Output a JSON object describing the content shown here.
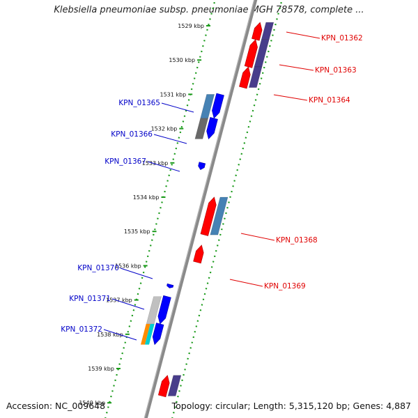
{
  "title": "Klebsiella pneumoniae subsp. pneumoniae MGH 78578, complete ...",
  "footer": {
    "accession": "Accession: NC_009648",
    "topology": "Topology: circular; Length: 5,315,120 bp; Genes: 4,887"
  },
  "colors": {
    "backbone": "#8a8a8a",
    "track_dots": "#1a9a1a",
    "forward_gene": "#0000ff",
    "reverse_gene": "#ff0000",
    "forward_label": "#0000c8",
    "reverse_label": "#e00000",
    "feature_blue": "#4682b4",
    "feature_purple": "#483d8b",
    "feature_gray": "#696969",
    "feature_lightgray": "#c0c0c0",
    "feature_orange": "#ff8c00",
    "feature_cyan": "#00ced1"
  },
  "map": {
    "unit": "kbp",
    "ticks": [
      "1529 kbp",
      "1530 kbp",
      "1531 kbp",
      "1532 kbp",
      "1533 kbp",
      "1534 kbp",
      "1535 kbp",
      "1536 kbp",
      "1537 kbp",
      "1538 kbp",
      "1539 kbp",
      "1540 kbp"
    ],
    "genes_forward": [
      {
        "name": "KPN_01365",
        "start_kbp": 1531.0,
        "end_kbp": 1531.7,
        "annotation_color": "#4682b4"
      },
      {
        "name": "KPN_01366",
        "start_kbp": 1531.7,
        "end_kbp": 1532.3,
        "annotation_color": "#696969"
      },
      {
        "name": "KPN_01367",
        "start_kbp": 1533.0,
        "end_kbp": 1533.2
      },
      {
        "name": "KPN_01370",
        "start_kbp": 1536.55,
        "end_kbp": 1536.65
      },
      {
        "name": "KPN_01371",
        "start_kbp": 1536.9,
        "end_kbp": 1537.7,
        "annotation_color": "#c0c0c0"
      },
      {
        "name": "KPN_01372",
        "start_kbp": 1537.7,
        "end_kbp": 1538.3,
        "annotation_color": "#00ced1"
      }
    ],
    "genes_reverse": [
      {
        "name": "KPN_01362",
        "start_kbp": 1528.9,
        "end_kbp": 1529.4,
        "annotation_color": "#483d8b"
      },
      {
        "name": "KPN_01363",
        "start_kbp": 1529.4,
        "end_kbp": 1530.2,
        "annotation_color": "#483d8b"
      },
      {
        "name": "KPN_01364",
        "start_kbp": 1530.2,
        "end_kbp": 1530.8,
        "annotation_color": "#483d8b"
      },
      {
        "name": "KPN_01368",
        "start_kbp": 1534.0,
        "end_kbp": 1535.1,
        "annotation_color": "#4682b4"
      },
      {
        "name": "KPN_01369",
        "start_kbp": 1535.4,
        "end_kbp": 1535.9
      }
    ],
    "unlabeled_genes": [
      {
        "strand": "reverse",
        "start_kbp": 1539.2,
        "end_kbp": 1539.8,
        "annotation_color": "#483d8b"
      }
    ]
  }
}
